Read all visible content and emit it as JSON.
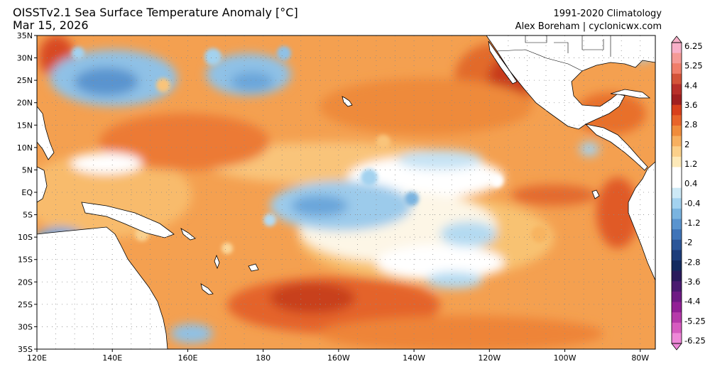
{
  "header": {
    "title": "OISSTv2.1 Sea Surface Temperature Anomaly [°C]",
    "date": "Mar 15, 2026",
    "climatology": "1991-2020 Climatology",
    "credit": "Alex Boreham | cyclonicwx.com"
  },
  "map": {
    "region": "Tropical Pacific",
    "lon_range": [
      120,
      284
    ],
    "lat_range": [
      -35,
      35
    ],
    "lat_ticks": [
      {
        "value": 35,
        "label": "35N"
      },
      {
        "value": 30,
        "label": "30N"
      },
      {
        "value": 25,
        "label": "25N"
      },
      {
        "value": 20,
        "label": "20N"
      },
      {
        "value": 15,
        "label": "15N"
      },
      {
        "value": 10,
        "label": "10N"
      },
      {
        "value": 5,
        "label": "5N"
      },
      {
        "value": 0,
        "label": "EQ"
      },
      {
        "value": -5,
        "label": "5S"
      },
      {
        "value": -10,
        "label": "10S"
      },
      {
        "value": -15,
        "label": "15S"
      },
      {
        "value": -20,
        "label": "20S"
      },
      {
        "value": -25,
        "label": "25S"
      },
      {
        "value": -30,
        "label": "30S"
      },
      {
        "value": -35,
        "label": "35S"
      }
    ],
    "lon_ticks": [
      {
        "value": 120,
        "label": "120E"
      },
      {
        "value": 140,
        "label": "140E"
      },
      {
        "value": 160,
        "label": "160E"
      },
      {
        "value": 180,
        "label": "180"
      },
      {
        "value": 200,
        "label": "160W"
      },
      {
        "value": 220,
        "label": "140W"
      },
      {
        "value": 240,
        "label": "120W"
      },
      {
        "value": 260,
        "label": "100W"
      },
      {
        "value": 280,
        "label": "80W"
      }
    ],
    "grid": "dotted"
  },
  "colorbar": {
    "labels": [
      "6.25",
      "5.25",
      "4.4",
      "3.6",
      "2.8",
      "2",
      "1.2",
      "0.4",
      "-0.4",
      "-1.2",
      "-2",
      "-2.8",
      "-3.6",
      "-4.4",
      "-5.25",
      "-6.25"
    ],
    "colors": [
      "#f8b0c8",
      "#f59a96",
      "#f07e6a",
      "#d4543a",
      "#b8302a",
      "#a02020",
      "#d8401c",
      "#e8642a",
      "#f08c3c",
      "#f7b060",
      "#fbd08a",
      "#fde9b8",
      "#ffffff",
      "#ffffff",
      "#cde9f6",
      "#a3d2ef",
      "#7ab4e0",
      "#5a94cf",
      "#3f74b8",
      "#2c5698",
      "#1d3d7a",
      "#142a5e",
      "#2a1a5c",
      "#4a1a70",
      "#6e1a84",
      "#921f96",
      "#b63aaa",
      "#d65cc0",
      "#ee88d8"
    ]
  },
  "colors": {
    "warm": "#f08c3c",
    "warm_strong": "#d8401c",
    "cool": "#7ab4e0",
    "neutral": "#ffffff",
    "land": "#ffffff"
  }
}
